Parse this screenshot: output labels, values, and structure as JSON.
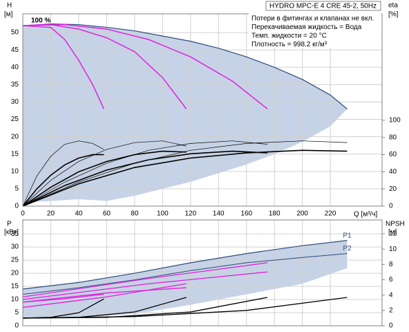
{
  "chart_data": [
    {
      "type": "line",
      "title": "HYDRO MPC-E 4 CRE 45-2, 50Hz",
      "notes": [
        "Потери в фитингах и клапанах не вкл.",
        "Перекачиваемая жидкость = Вода",
        "Темп. жидкости = 20 °C",
        "Плотность = 998.2 кг/м³"
      ],
      "annotation": "100 %",
      "y_label": "H",
      "y_unit": "[м]",
      "y2_label": "eta",
      "y2_unit": "[%]",
      "x_label": "Q [м³/ч]",
      "xlim": [
        0,
        257
      ],
      "xticks": [
        0,
        20,
        40,
        60,
        80,
        100,
        120,
        140,
        160,
        180,
        200,
        220
      ],
      "ylim": [
        0,
        55.4
      ],
      "yticks": [
        0,
        5,
        10,
        15,
        20,
        25,
        30,
        35,
        40,
        45,
        50
      ],
      "y2lim": [
        0,
        224
      ],
      "y2ticks": [
        0,
        20,
        40,
        60,
        80,
        100
      ],
      "grid": true,
      "series": [
        {
          "style": "area",
          "color": "#c6d3e6",
          "edge": "#2b4a7a",
          "x": [
            0,
            20,
            40,
            60,
            80,
            100,
            120,
            140,
            160,
            180,
            200,
            220,
            232
          ],
          "values": [
            52,
            52.5,
            52.3,
            51.5,
            50.5,
            49,
            47.5,
            45.5,
            43,
            40,
            36.5,
            32,
            28
          ],
          "lower": [
            1,
            1.5,
            2,
            1.5,
            3,
            5,
            7,
            9.5,
            12,
            15,
            18.5,
            23,
            28
          ]
        },
        {
          "color": "#e020e0",
          "width": 1.5,
          "x": [
            0,
            20,
            30,
            40,
            50,
            58
          ],
          "values": [
            52,
            51.5,
            48,
            42,
            35,
            28
          ]
        },
        {
          "color": "#e020e0",
          "width": 1.5,
          "x": [
            0,
            20,
            40,
            60,
            80,
            100,
            117
          ],
          "values": [
            52,
            52.3,
            51,
            48.5,
            44.5,
            37,
            28
          ]
        },
        {
          "color": "#e020e0",
          "width": 1.5,
          "x": [
            0,
            30,
            60,
            90,
            120,
            150,
            175
          ],
          "values": [
            52,
            52.3,
            51,
            48,
            43,
            36,
            28
          ]
        },
        {
          "color": "#000000",
          "width": 0.7,
          "axis": "y2",
          "x": [
            0,
            10,
            20,
            30,
            40,
            50,
            58
          ],
          "values": [
            0,
            35,
            58,
            72,
            76,
            73,
            66
          ]
        },
        {
          "color": "#000000",
          "width": 0.7,
          "axis": "y2",
          "x": [
            0,
            20,
            40,
            60,
            80,
            100,
            117
          ],
          "values": [
            0,
            30,
            52,
            66,
            74,
            76,
            70
          ]
        },
        {
          "color": "#000000",
          "width": 0.7,
          "axis": "y2",
          "x": [
            0,
            30,
            60,
            90,
            120,
            150,
            175
          ],
          "values": [
            0,
            28,
            50,
            65,
            73,
            76,
            72
          ]
        },
        {
          "color": "#000000",
          "width": 0.7,
          "axis": "y2",
          "x": [
            0,
            40,
            80,
            120,
            160,
            200,
            232
          ],
          "values": [
            0,
            28,
            50,
            65,
            73,
            76,
            74
          ]
        },
        {
          "color": "#000000",
          "width": 1.6,
          "axis": "y2",
          "x": [
            0,
            10,
            20,
            30,
            40,
            50,
            58
          ],
          "values": [
            0,
            20,
            36,
            48,
            56,
            60,
            60
          ]
        },
        {
          "color": "#000000",
          "width": 1.6,
          "axis": "y2",
          "x": [
            0,
            20,
            40,
            60,
            80,
            100,
            117
          ],
          "values": [
            0,
            22,
            40,
            52,
            60,
            64,
            63
          ]
        },
        {
          "color": "#000000",
          "width": 1.6,
          "axis": "y2",
          "x": [
            0,
            30,
            60,
            90,
            120,
            150,
            175
          ],
          "values": [
            0,
            24,
            42,
            54,
            61,
            64,
            62
          ]
        },
        {
          "color": "#000000",
          "width": 1.6,
          "axis": "y2",
          "x": [
            0,
            40,
            80,
            120,
            160,
            200,
            232
          ],
          "values": [
            0,
            26,
            45,
            56,
            62,
            65,
            64
          ]
        }
      ]
    },
    {
      "type": "line",
      "y_label": "P",
      "y_unit": "[кВт]",
      "y2_label": "NPSH",
      "y2_unit": "[м]",
      "xlim": [
        0,
        257
      ],
      "xticks": [
        0,
        20,
        40,
        60,
        80,
        100,
        120,
        140,
        160,
        180,
        200,
        220
      ],
      "ylim": [
        0,
        40.3
      ],
      "yticks": [
        0,
        5,
        10,
        15,
        20,
        25,
        30,
        35
      ],
      "y2lim": [
        0,
        13.8
      ],
      "y2ticks": [
        0,
        2,
        4,
        6,
        8,
        10,
        12
      ],
      "grid": true,
      "series": [
        {
          "name": "P1",
          "style": "area",
          "color": "#c6d3e6",
          "edge": "#2b4a7a",
          "x": [
            0,
            40,
            80,
            120,
            160,
            200,
            232
          ],
          "values": [
            14,
            16.5,
            20,
            24,
            27.5,
            30.5,
            32.5
          ],
          "lower": [
            3,
            3.2,
            4.5,
            8,
            12,
            16,
            22
          ]
        },
        {
          "name": "P2",
          "color": "#2b4a7a",
          "width": 1,
          "x": [
            0,
            40,
            80,
            120,
            160,
            200,
            232
          ],
          "values": [
            12,
            14.5,
            17.5,
            21,
            24,
            26,
            27.5
          ]
        },
        {
          "color": "#e020e0",
          "width": 1.3,
          "x": [
            0,
            30,
            58
          ],
          "values": [
            9,
            10.3,
            12
          ]
        },
        {
          "color": "#e020e0",
          "width": 1.3,
          "x": [
            0,
            60,
            117
          ],
          "values": [
            7,
            11,
            16
          ]
        },
        {
          "color": "#e020e0",
          "width": 1.3,
          "x": [
            0,
            60,
            117
          ],
          "values": [
            9,
            12.5,
            14.5
          ]
        },
        {
          "color": "#e020e0",
          "width": 1.3,
          "x": [
            0,
            90,
            175
          ],
          "values": [
            11,
            18,
            24
          ]
        },
        {
          "color": "#e020e0",
          "width": 1.3,
          "x": [
            0,
            90,
            175
          ],
          "values": [
            10,
            16,
            20.5
          ]
        },
        {
          "color": "#000000",
          "width": 1.3,
          "axis": "y2",
          "x": [
            0,
            20,
            40,
            58
          ],
          "values": [
            1,
            1.1,
            1.7,
            3.5
          ]
        },
        {
          "color": "#000000",
          "width": 1.3,
          "axis": "y2",
          "x": [
            0,
            40,
            80,
            117
          ],
          "values": [
            1,
            1.1,
            1.8,
            3.7
          ]
        },
        {
          "color": "#000000",
          "width": 1.3,
          "axis": "y2",
          "x": [
            0,
            60,
            120,
            175
          ],
          "values": [
            1,
            1.1,
            1.8,
            3.7
          ]
        },
        {
          "color": "#000000",
          "width": 1.3,
          "axis": "y2",
          "x": [
            0,
            80,
            160,
            232
          ],
          "values": [
            1,
            1.2,
            2,
            3.7
          ]
        }
      ]
    }
  ]
}
